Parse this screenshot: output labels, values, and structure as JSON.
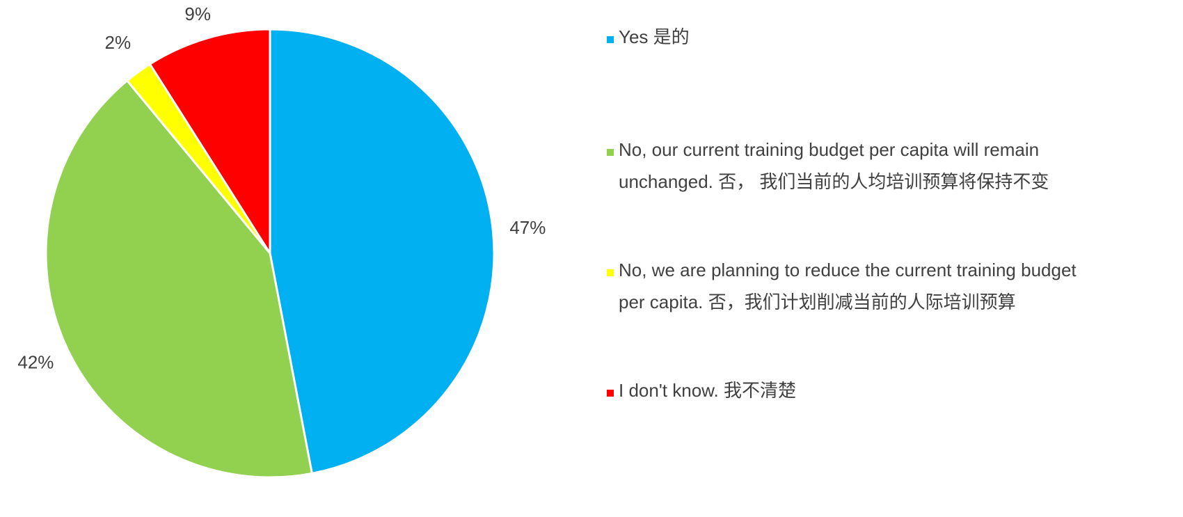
{
  "chart_data": {
    "type": "pie",
    "categories": [
      "Yes 是的",
      "No, our current training budget per capita will remain unchanged. 否， 我们当前的人均培训预算将保持不变",
      "No, we are planning to reduce the current training budget per capita. 否，我们计划削减当前的人际培训预算",
      "I don't know. 我不清楚"
    ],
    "values": [
      47,
      42,
      2,
      9
    ],
    "value_labels": [
      "47%",
      "42%",
      "2%",
      "9%"
    ],
    "colors": [
      "#00b0f0",
      "#92d050",
      "#ffff00",
      "#ff0000"
    ],
    "legend": "right"
  }
}
